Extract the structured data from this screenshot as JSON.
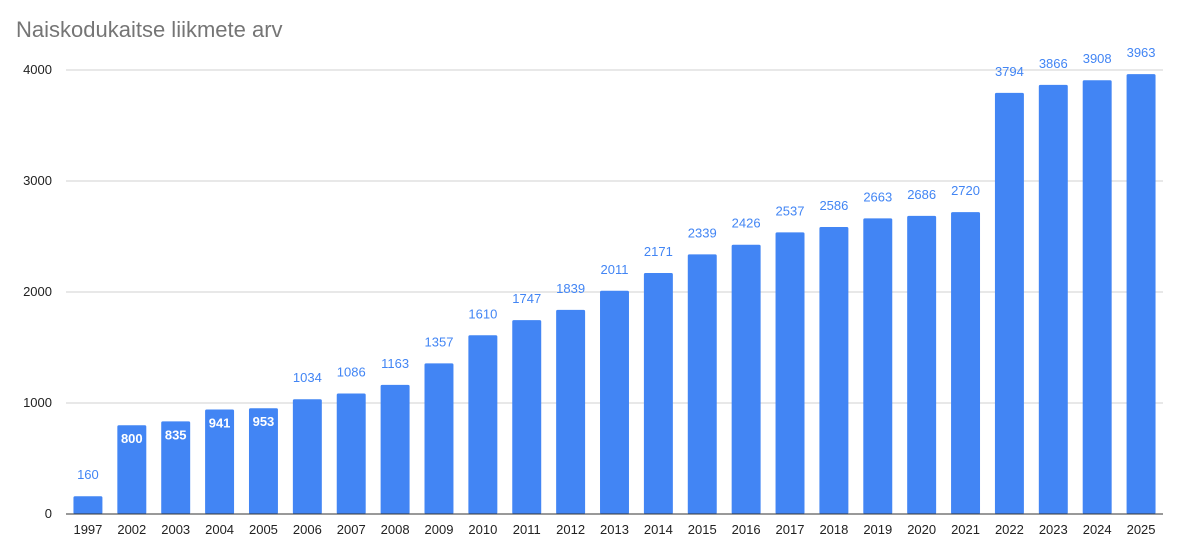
{
  "chart_data": {
    "type": "bar",
    "title": "Naiskodukaitse liikmete arv",
    "xlabel": "",
    "ylabel": "",
    "categories": [
      "1997",
      "2002",
      "2003",
      "2004",
      "2005",
      "2006",
      "2007",
      "2008",
      "2009",
      "2010",
      "2011",
      "2012",
      "2013",
      "2014",
      "2015",
      "2016",
      "2017",
      "2018",
      "2019",
      "2020",
      "2021",
      "2022",
      "2023",
      "2024",
      "2025"
    ],
    "values": [
      160,
      800,
      835,
      941,
      953,
      1034,
      1086,
      1163,
      1357,
      1610,
      1747,
      1839,
      2011,
      2171,
      2339,
      2426,
      2537,
      2586,
      2663,
      2686,
      2720,
      3794,
      3866,
      3908,
      3963
    ],
    "ylim": [
      0,
      4000
    ],
    "yticks": [
      0,
      1000,
      2000,
      3000,
      4000
    ],
    "grid": true,
    "legend": "none",
    "bar_color": "#4285f4",
    "data_labels": true
  }
}
